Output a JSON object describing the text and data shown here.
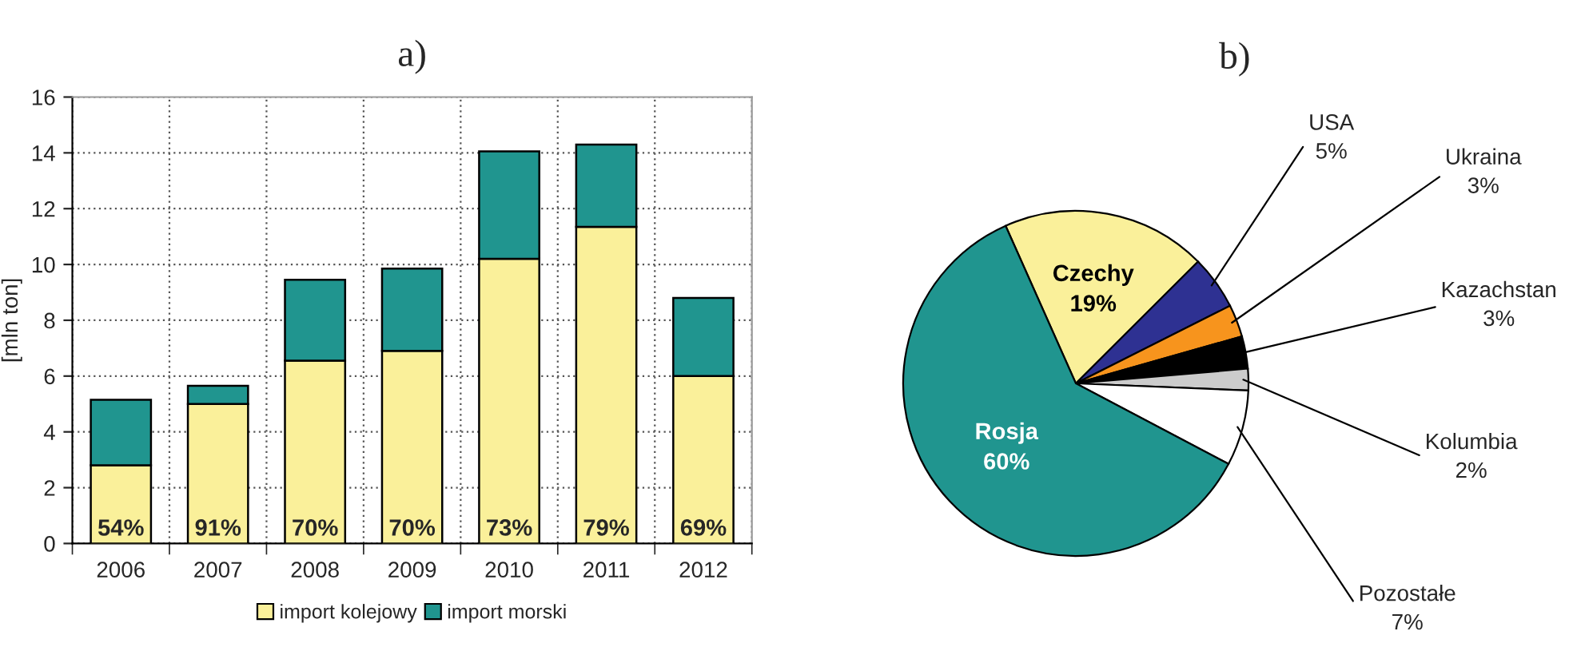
{
  "chart_data": [
    {
      "type": "bar",
      "title": "a)",
      "ylabel": "[mln ton]",
      "categories": [
        "2006",
        "2007",
        "2008",
        "2009",
        "2010",
        "2011",
        "2012"
      ],
      "stacked": true,
      "ylim": [
        0,
        16
      ],
      "yticks": [
        0,
        2,
        4,
        6,
        8,
        10,
        12,
        14,
        16
      ],
      "grid": true,
      "legend": "bottom",
      "annotations": [
        "54%",
        "91%",
        "70%",
        "70%",
        "73%",
        "79%",
        "69%"
      ],
      "series": [
        {
          "name": "import kolejowy",
          "color": "#faf09a",
          "values": [
            2.8,
            5.0,
            6.55,
            6.9,
            10.2,
            11.35,
            6.0
          ]
        },
        {
          "name": "import morski",
          "color": "#20958f",
          "values": [
            2.35,
            0.65,
            2.9,
            2.95,
            3.85,
            2.95,
            2.8
          ]
        }
      ]
    },
    {
      "type": "pie",
      "title": "b)",
      "categories": [
        "Czechy",
        "USA",
        "Ukraina",
        "Kazachstan",
        "Kolumbia",
        "Pozostałe",
        "Rosja"
      ],
      "values": [
        19,
        5,
        3,
        3,
        2,
        7,
        60
      ],
      "value_labels": [
        "19%",
        "5%",
        "3%",
        "3%",
        "2%",
        "7%",
        "60%"
      ],
      "colors": [
        "#faf09a",
        "#2e3192",
        "#f7941d",
        "#000000",
        "#cccccc",
        "#ffffff",
        "#20958f"
      ]
    }
  ]
}
